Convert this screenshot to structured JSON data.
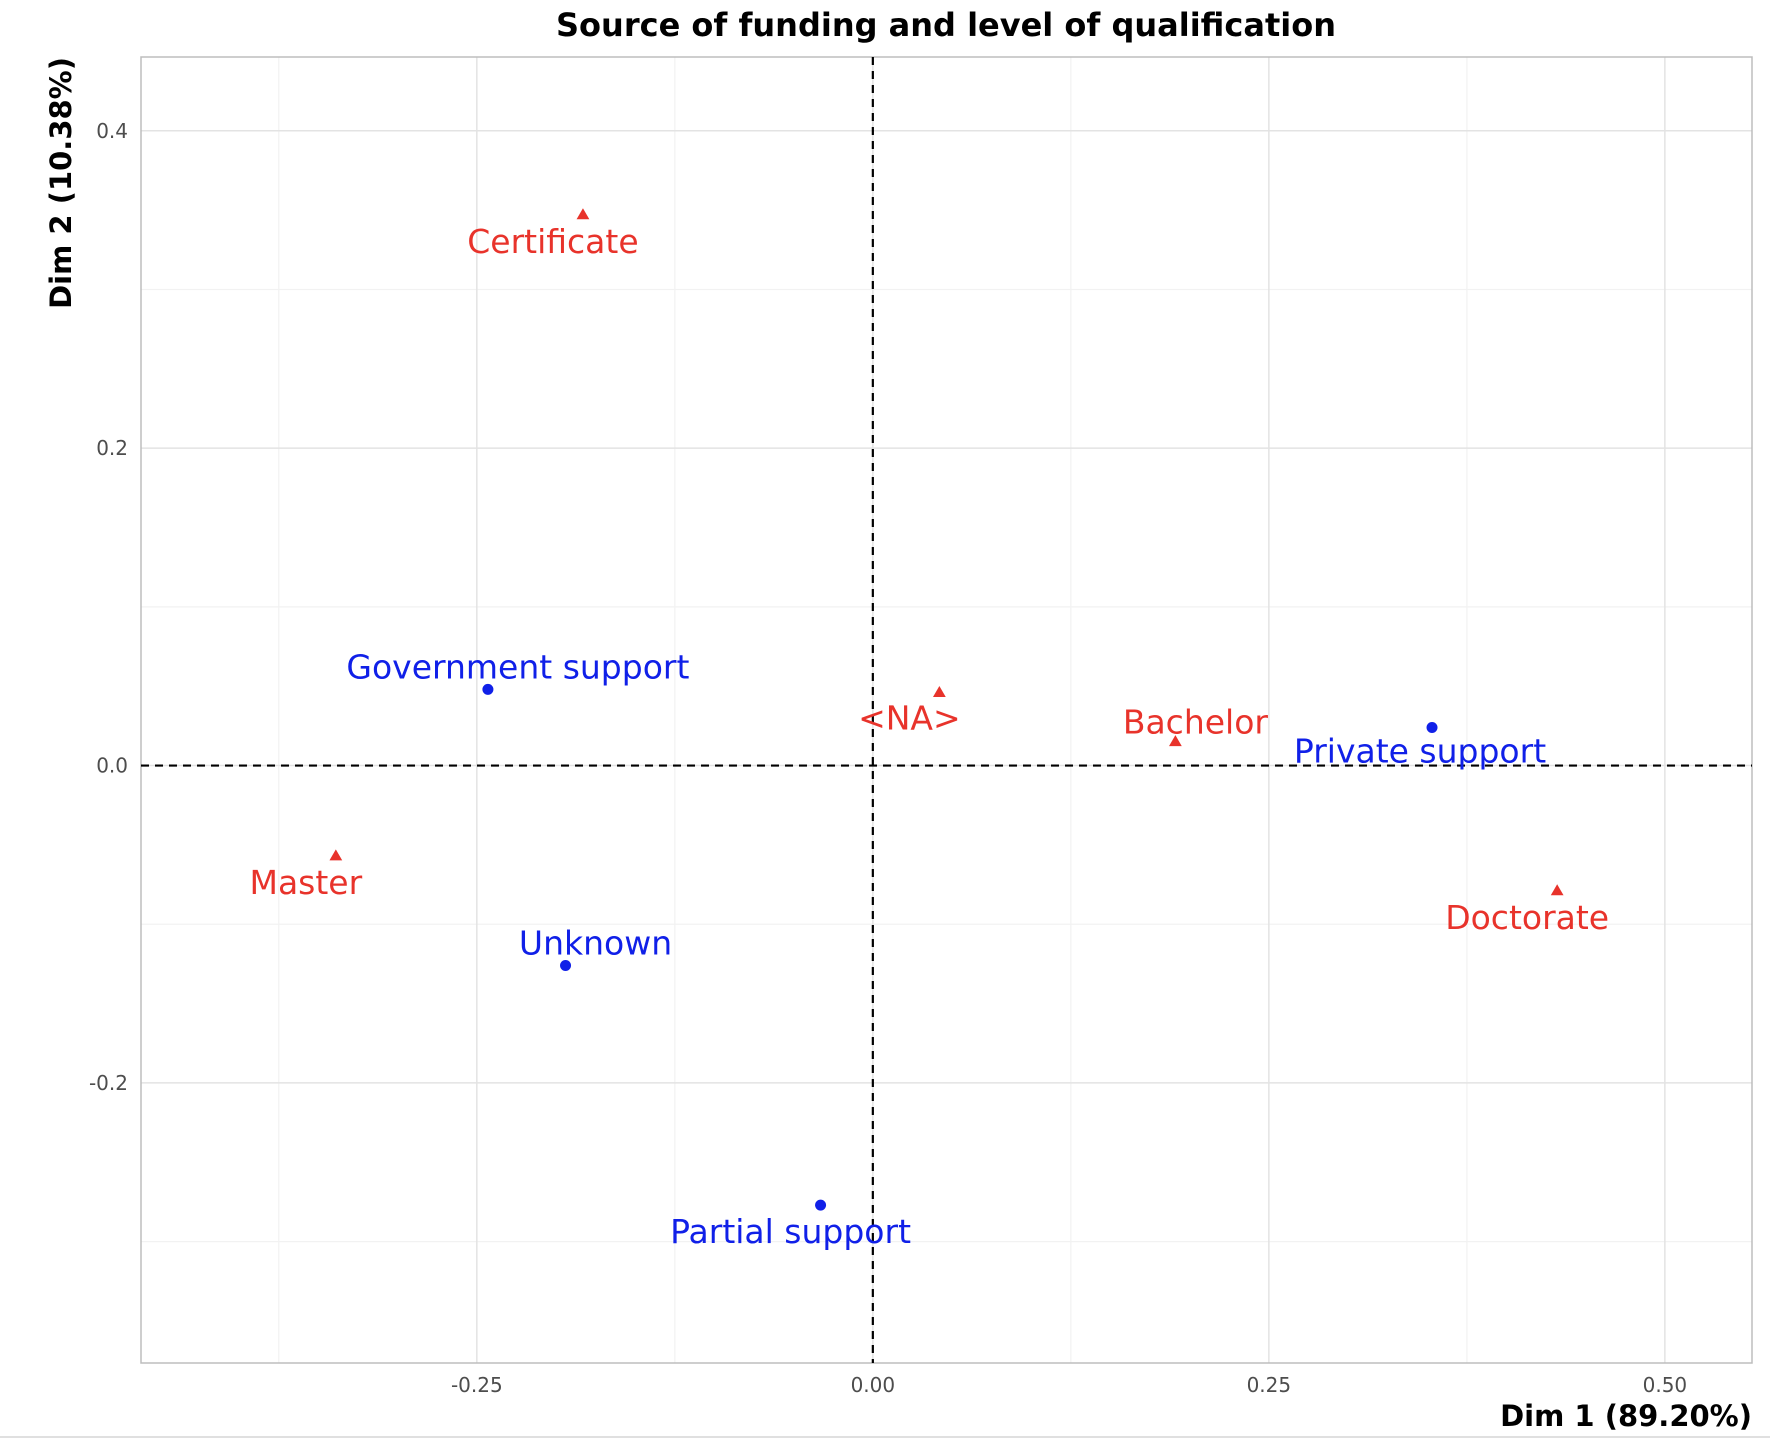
{
  "chart_data": {
    "type": "scatter",
    "title": "Source of funding and level of qualification",
    "xlabel": "Dim 1 (89.20%)",
    "ylabel": "Dim 2 (10.38%)",
    "xlim": [
      -0.462,
      0.555
    ],
    "ylim": [
      -0.3765,
      0.4465
    ],
    "xticks": [
      -0.25,
      0.0,
      0.25,
      0.5
    ],
    "xtick_labels": [
      "-0.25",
      "0.00",
      "0.25",
      "0.50"
    ],
    "yticks": [
      -0.2,
      0.0,
      0.2,
      0.4
    ],
    "ytick_labels": [
      "-0.2",
      "0.0",
      "0.2",
      "0.4"
    ],
    "grid": true,
    "reference_lines": [
      0,
      0
    ],
    "series": [
      {
        "color": "#e8332b",
        "marker": "triangle",
        "points": [
          {
            "label": "Certificate",
            "x": -0.183,
            "y": 0.347
          },
          {
            "label": "<NA>",
            "x": 0.042,
            "y": 0.046
          },
          {
            "label": "Bachelor",
            "x": 0.191,
            "y": 0.015
          },
          {
            "label": "Master",
            "x": -0.339,
            "y": -0.057
          },
          {
            "label": "Doctorate",
            "x": 0.432,
            "y": -0.079
          }
        ]
      },
      {
        "color": "#1020e8",
        "marker": "circle",
        "points": [
          {
            "label": "Government support",
            "x": -0.243,
            "y": 0.048
          },
          {
            "label": "Private support",
            "x": 0.353,
            "y": 0.024
          },
          {
            "label": "Unknown",
            "x": -0.194,
            "y": -0.126
          },
          {
            "label": "Partial support",
            "x": -0.033,
            "y": -0.277
          }
        ]
      }
    ]
  }
}
